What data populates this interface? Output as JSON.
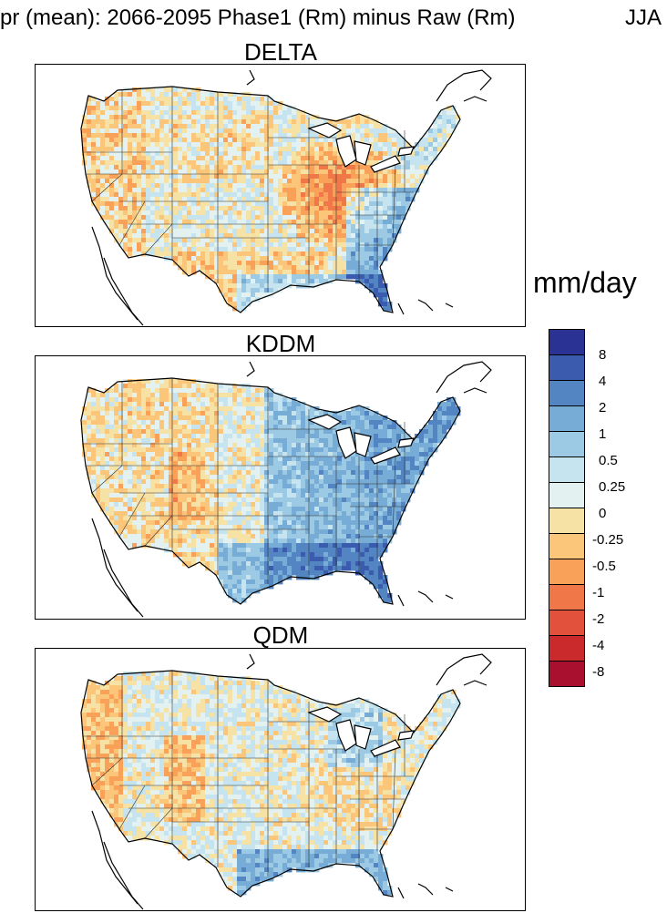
{
  "figure": {
    "title": "pr (mean): 2066-2095 Phase1 (Rm) minus Raw (Rm)",
    "season": "JJA",
    "units": "mm/day"
  },
  "panels": [
    {
      "title": "DELTA",
      "pattern": "drying-midwest-south, wetting-southeast-gulf"
    },
    {
      "title": "KDDM",
      "pattern": "wetting-east, slight-drying-west"
    },
    {
      "title": "QDM",
      "pattern": "mixed, drying-west-coast, wetting-gulf"
    }
  ],
  "colorbar": {
    "labels": [
      "8",
      "4",
      "2",
      "1",
      "0.5",
      "0.25",
      "0",
      "-0.25",
      "-0.5",
      "-1",
      "-2",
      "-4",
      "-8"
    ],
    "colors": [
      "#2a3394",
      "#3a5bae",
      "#5285c1",
      "#76acd6",
      "#9ccae4",
      "#c5e4ef",
      "#e3f1f1",
      "#f7e2a6",
      "#fcc67a",
      "#f9a159",
      "#f07747",
      "#e2513b",
      "#cb2a2c",
      "#a90f2f"
    ]
  }
}
